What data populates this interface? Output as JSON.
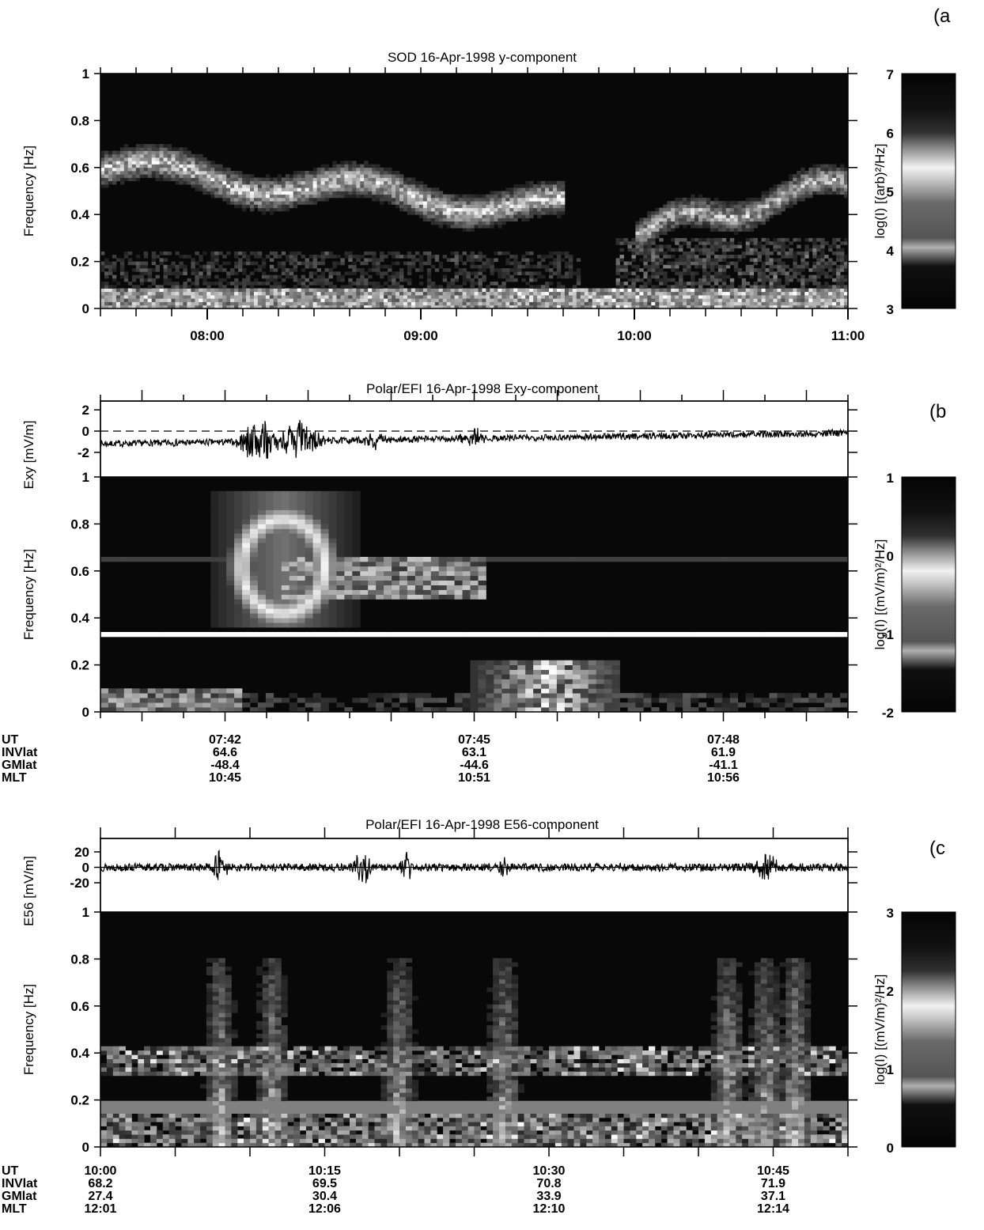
{
  "chart_data": [
    {
      "panel": "(a",
      "type": "heatmap",
      "title": "SOD 16-Apr-1998 y-component",
      "ylabel": "Frequency [Hz]",
      "ylim": [
        0,
        1
      ],
      "yticks": [
        "0",
        "0.2",
        "0.4",
        "0.6",
        "0.8",
        "1"
      ],
      "xticks": [
        "08:00",
        "09:00",
        "10:00",
        "11:00"
      ],
      "colorbar": {
        "label": "log(I) [(arb)²/Hz]",
        "range": [
          3,
          7
        ],
        "ticks": [
          "3",
          "4",
          "5",
          "6",
          "7"
        ]
      },
      "features": [
        {
          "from": "07:30",
          "to": "09:45",
          "f_start": 0.6,
          "f_end": 0.4
        },
        {
          "from": "10:00",
          "to": "10:55",
          "f_start": 0.3,
          "f_end": 0.55
        },
        {
          "from": "07:30",
          "to": "11:00",
          "f_start": 0.05,
          "f_end": 0.05
        }
      ]
    },
    {
      "panel": "(b",
      "type": "line+heatmap",
      "title": "Polar/EFI  16-Apr-1998  Exy-component",
      "line": {
        "ylabel": "Exy [mV/m]",
        "yticks": [
          "2",
          "0",
          "-2"
        ],
        "ylim": [
          -3,
          3
        ],
        "baseline": -1.2
      },
      "spectrogram": {
        "ylabel": "Frequency [Hz]",
        "ylim": [
          0,
          1
        ],
        "yticks": [
          "0",
          "0.2",
          "0.4",
          "0.6",
          "0.8",
          "1"
        ]
      },
      "colorbar": {
        "label": "log(I) [(mV/m)²/Hz]",
        "range": [
          -2,
          1
        ],
        "ticks": [
          "-2",
          "-1",
          "0",
          "1"
        ]
      },
      "ephemeris": {
        "labels": [
          "UT",
          "INVlat",
          "GMlat",
          "MLT"
        ],
        "columns": [
          [
            "07:42",
            "64.6",
            "-48.4",
            "10:45"
          ],
          [
            "07:45",
            "63.1",
            "-44.6",
            "10:51"
          ],
          [
            "07:48",
            "61.9",
            "-41.1",
            "10:56"
          ]
        ]
      },
      "features": [
        {
          "time": "07:42.7",
          "f_low": 0.35,
          "f_high": 0.8
        },
        {
          "time": "07:45.8",
          "f_low": 0.05,
          "f_high": 0.2
        },
        {
          "from": "07:40",
          "to": "07:50",
          "f": 0.33
        }
      ]
    },
    {
      "panel": "(c",
      "type": "line+heatmap",
      "title": "Polar/EFI  16-Apr-1998  E56-component",
      "line": {
        "ylabel": "E56 [mV/m]",
        "yticks": [
          "20",
          "0",
          "-20"
        ],
        "ylim": [
          -40,
          40
        ],
        "baseline": 0
      },
      "spectrogram": {
        "ylabel": "Frequency [Hz]",
        "ylim": [
          0,
          1
        ],
        "yticks": [
          "0",
          "0.2",
          "0.4",
          "0.6",
          "0.8",
          "1"
        ]
      },
      "colorbar": {
        "label": "log(I) [(mV/m)²/Hz]",
        "range": [
          0,
          3
        ],
        "ticks": [
          "0",
          "1",
          "2",
          "3"
        ]
      },
      "ephemeris": {
        "labels": [
          "UT",
          "INVlat",
          "GMlat",
          "MLT"
        ],
        "columns": [
          [
            "10:00",
            "68.2",
            "27.4",
            "12:01"
          ],
          [
            "10:15",
            "69.5",
            "30.4",
            "12:06"
          ],
          [
            "10:30",
            "70.8",
            "33.9",
            "12:10"
          ],
          [
            "10:45",
            "71.9",
            "37.1",
            "12:14"
          ]
        ]
      },
      "features": [
        {
          "from": "10:00",
          "to": "10:50",
          "f": 0.38
        },
        {
          "from": "10:00",
          "to": "10:50",
          "f": 0.17
        },
        {
          "from": "10:00",
          "to": "10:50",
          "f": 0.03
        }
      ]
    }
  ]
}
